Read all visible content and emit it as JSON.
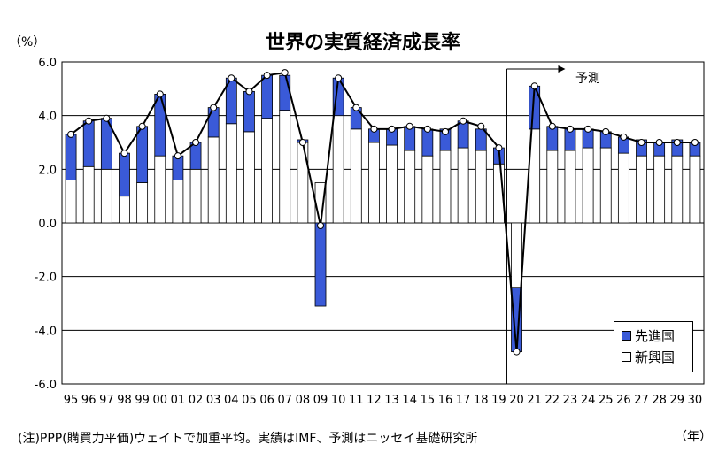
{
  "chart_data": {
    "type": "bar",
    "title": "世界の実質経済成長率",
    "ylabel": "（%）",
    "xlabel": "（年）",
    "ylim": [
      -6,
      6
    ],
    "yticks": [
      "6.0",
      "4.0",
      "2.0",
      "0.0",
      "-2.0",
      "-4.0",
      "-6.0"
    ],
    "categories": [
      "95",
      "96",
      "97",
      "98",
      "99",
      "00",
      "01",
      "02",
      "03",
      "04",
      "05",
      "06",
      "07",
      "08",
      "09",
      "10",
      "11",
      "12",
      "13",
      "14",
      "15",
      "16",
      "17",
      "18",
      "19",
      "20",
      "21",
      "22",
      "23",
      "24",
      "25",
      "26",
      "27",
      "28",
      "29",
      "30"
    ],
    "series": [
      {
        "name": "新興国",
        "values": [
          1.6,
          2.1,
          2.0,
          1.0,
          1.5,
          2.5,
          1.6,
          2.0,
          3.2,
          3.7,
          3.4,
          3.9,
          4.2,
          3.0,
          1.5,
          4.0,
          3.5,
          3.0,
          2.9,
          2.7,
          2.5,
          2.7,
          2.8,
          2.7,
          2.2,
          -2.4,
          3.5,
          2.7,
          2.7,
          2.8,
          2.8,
          2.6,
          2.5,
          2.5,
          2.5,
          2.5
        ]
      },
      {
        "name": "先進国",
        "values": [
          1.7,
          1.7,
          1.9,
          1.6,
          2.1,
          2.3,
          0.9,
          1.0,
          1.1,
          1.7,
          1.5,
          1.6,
          1.3,
          0.1,
          -3.1,
          1.4,
          0.8,
          0.5,
          0.6,
          0.9,
          1.0,
          0.8,
          1.0,
          0.8,
          0.6,
          -2.4,
          1.6,
          0.9,
          0.8,
          0.7,
          0.6,
          0.6,
          0.6,
          0.5,
          0.6,
          0.5
        ]
      },
      {
        "name": "世界",
        "values": [
          3.3,
          3.8,
          3.9,
          2.6,
          3.6,
          4.8,
          2.5,
          3.0,
          4.3,
          5.4,
          4.9,
          5.5,
          5.6,
          3.0,
          -0.1,
          5.4,
          4.3,
          3.5,
          3.5,
          3.6,
          3.5,
          3.4,
          3.8,
          3.6,
          2.8,
          -4.8,
          5.1,
          3.6,
          3.5,
          3.5,
          3.4,
          3.2,
          3.0,
          3.0,
          3.0,
          3.0
        ]
      }
    ],
    "forecast_start": "20",
    "forecast_label": "予測",
    "legend": [
      "先進国",
      "新興国"
    ],
    "legend_position": "bottom-right",
    "grid": true
  },
  "note": "(注)PPP(購買力平価)ウェイトで加重平均。実績はIMF、予測はニッセイ基礎研究所",
  "colors": {
    "advanced": "#3a5ad8",
    "emerging": "#ffffff",
    "line": "#000000"
  }
}
